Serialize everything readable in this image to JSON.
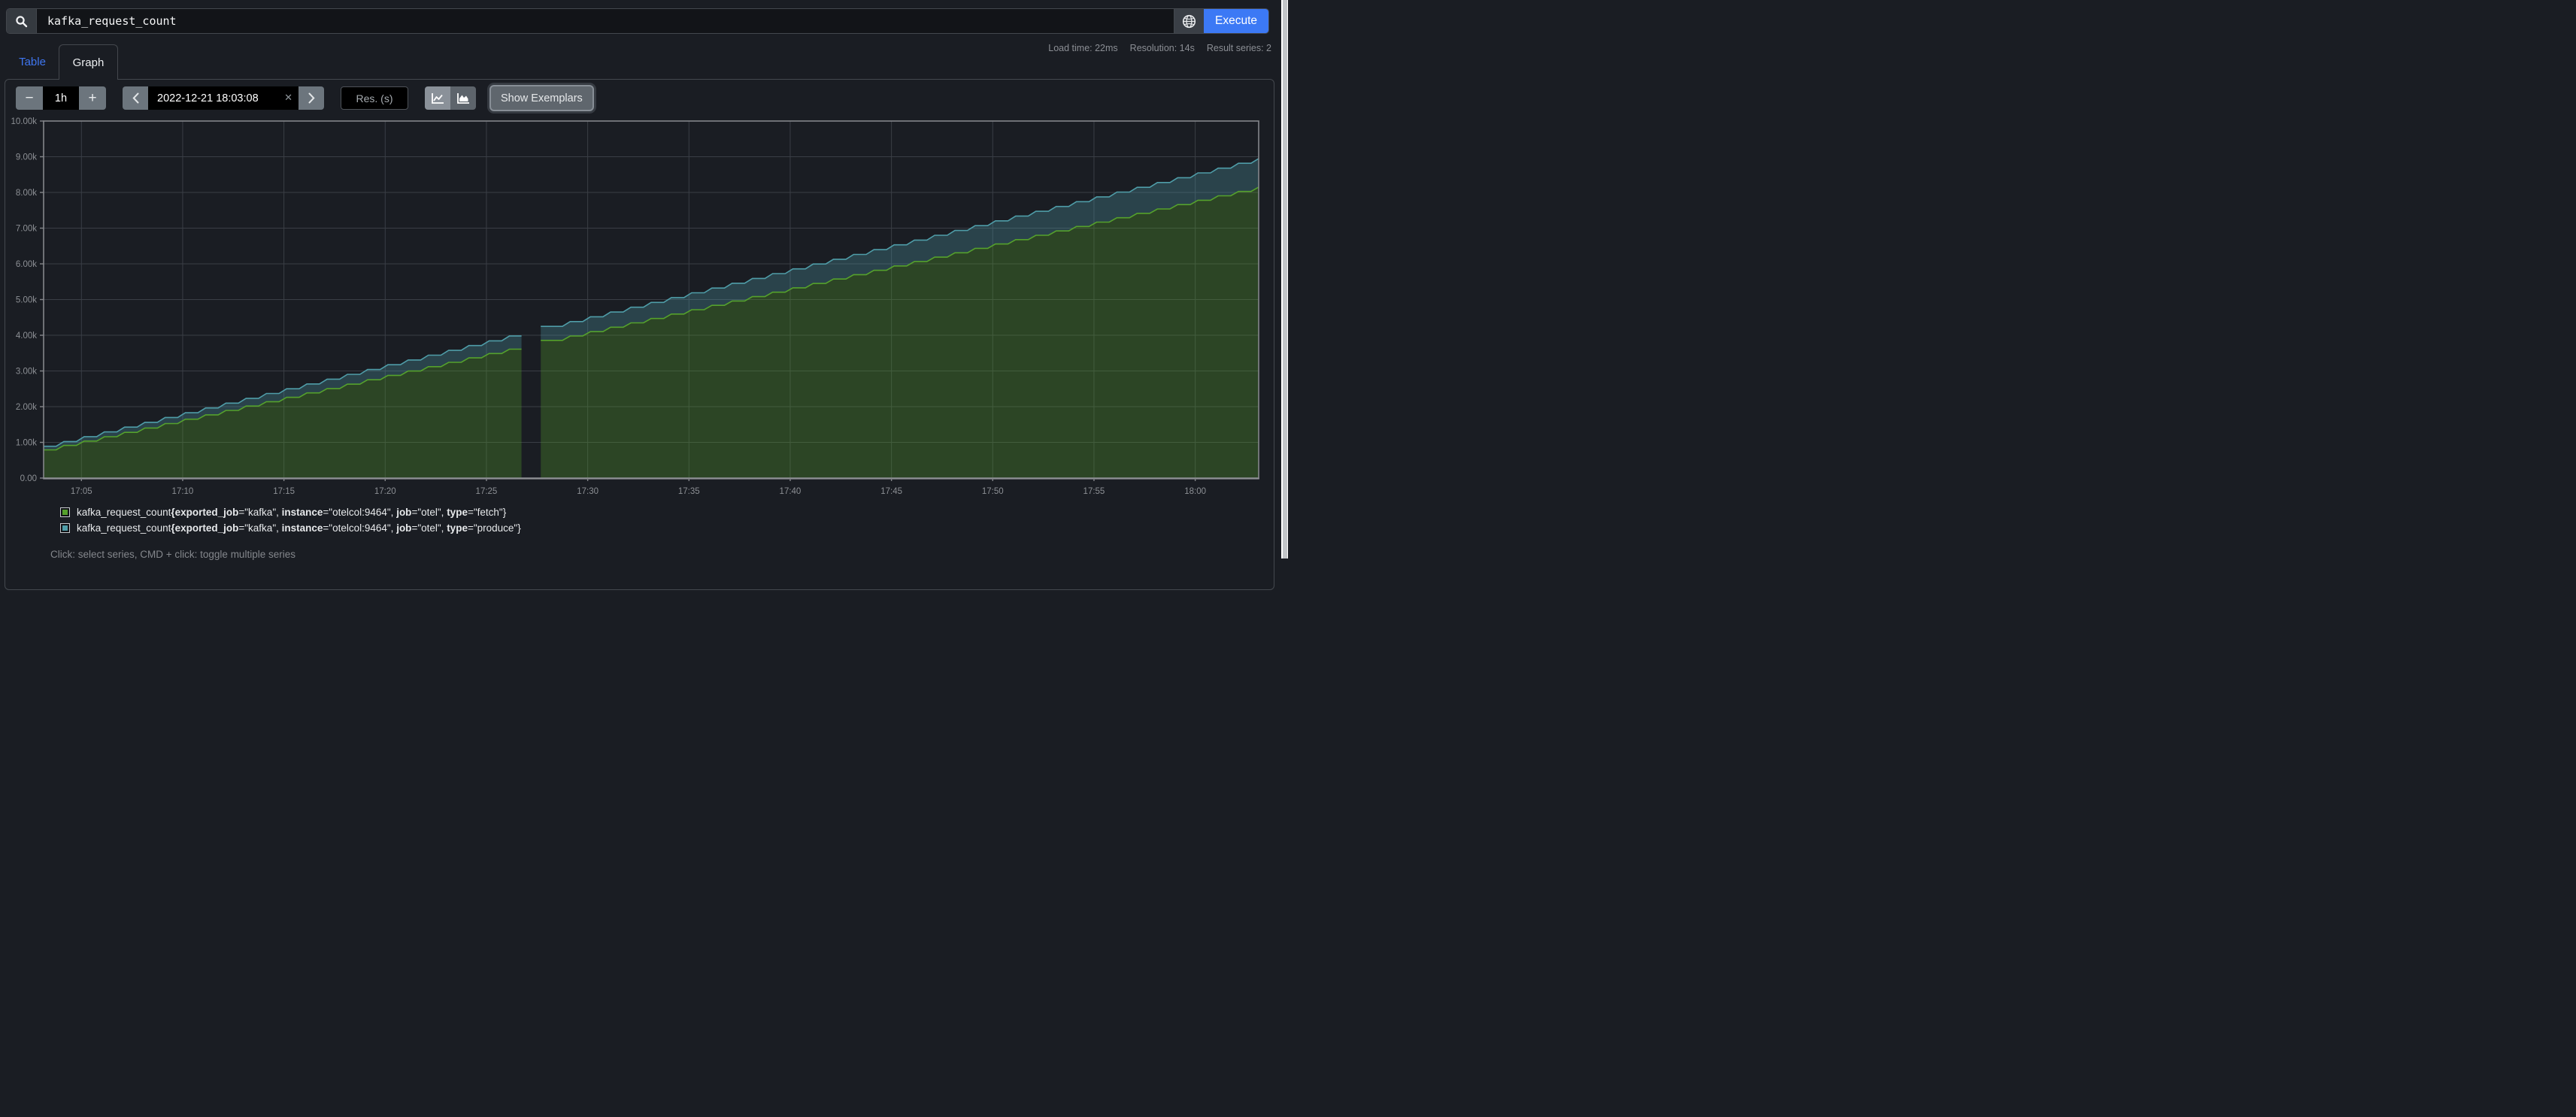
{
  "query_bar": {
    "query": "kafka_request_count",
    "execute_label": "Execute"
  },
  "stats": {
    "load_time": "Load time: 22ms",
    "resolution": "Resolution: 14s",
    "result_series": "Result series: 2"
  },
  "tabs": [
    {
      "label": "Table"
    },
    {
      "label": "Graph"
    }
  ],
  "toolbar": {
    "minus": "−",
    "plus": "+",
    "duration": "1h",
    "datetime": "2022-12-21 18:03:08",
    "clear": "✕",
    "res_placeholder": "Res. (s)",
    "show_exemplars": "Show Exemplars"
  },
  "legend": {
    "series": [
      {
        "color": "#55a12c",
        "metric": "kafka_request_count",
        "labels": [
          [
            "exported_job",
            "kafka"
          ],
          [
            "instance",
            "otelcol:9464"
          ],
          [
            "job",
            "otel"
          ],
          [
            "type",
            "fetch"
          ]
        ]
      },
      {
        "color": "#4f9da8",
        "metric": "kafka_request_count",
        "labels": [
          [
            "exported_job",
            "kafka"
          ],
          [
            "instance",
            "otelcol:9464"
          ],
          [
            "job",
            "otel"
          ],
          [
            "type",
            "produce"
          ]
        ]
      }
    ]
  },
  "hint": "Click: select series, CMD + click: toggle multiple series",
  "colors": {
    "grid": "#3a3e45",
    "border": "#84868a",
    "axis_text": "#8c8f94",
    "fill_opacity": 0.3,
    "background": "#1a1d23"
  },
  "chart_data": {
    "type": "line",
    "stacked": false,
    "title": "kafka_request_count",
    "x_start": "17:03:08",
    "x_end": "18:03:08",
    "x_step_minutes": 1,
    "gap_minute": 24,
    "ylim": [
      0,
      10000
    ],
    "y_ticks": [
      {
        "v": 0,
        "label": "0.00"
      },
      {
        "v": 1000,
        "label": "1.00k"
      },
      {
        "v": 2000,
        "label": "2.00k"
      },
      {
        "v": 3000,
        "label": "3.00k"
      },
      {
        "v": 4000,
        "label": "4.00k"
      },
      {
        "v": 5000,
        "label": "5.00k"
      },
      {
        "v": 6000,
        "label": "6.00k"
      },
      {
        "v": 7000,
        "label": "7.00k"
      },
      {
        "v": 8000,
        "label": "8.00k"
      },
      {
        "v": 9000,
        "label": "9.00k"
      },
      {
        "v": 10000,
        "label": "10.00k"
      }
    ],
    "x_ticks": [
      {
        "t": 1.867,
        "label": "17:05"
      },
      {
        "t": 6.867,
        "label": "17:10"
      },
      {
        "t": 11.867,
        "label": "17:15"
      },
      {
        "t": 16.867,
        "label": "17:20"
      },
      {
        "t": 21.867,
        "label": "17:25"
      },
      {
        "t": 26.867,
        "label": "17:30"
      },
      {
        "t": 31.867,
        "label": "17:35"
      },
      {
        "t": 36.867,
        "label": "17:40"
      },
      {
        "t": 41.867,
        "label": "17:45"
      },
      {
        "t": 46.867,
        "label": "17:50"
      },
      {
        "t": 51.867,
        "label": "17:55"
      },
      {
        "t": 56.867,
        "label": "18:00"
      }
    ],
    "series": [
      {
        "name": "kafka_request_count{exported_job=\"kafka\", instance=\"otelcol:9464\", job=\"otel\", type=\"produce\"}",
        "color": "#4f9da8",
        "values": [
          890,
          1024,
          1159,
          1293,
          1427,
          1562,
          1696,
          1830,
          1965,
          2099,
          2233,
          2368,
          2502,
          2636,
          2771,
          2905,
          3039,
          3174,
          3308,
          3442,
          3577,
          3711,
          3845,
          3980,
          null,
          4248,
          4383,
          4517,
          4651,
          4786,
          4920,
          5054,
          5189,
          5323,
          5457,
          5592,
          5726,
          5860,
          5995,
          6129,
          6263,
          6398,
          6532,
          6666,
          6801,
          6935,
          7069,
          7204,
          7338,
          7472,
          7607,
          7741,
          7875,
          8010,
          8144,
          8278,
          8413,
          8547,
          8681,
          8816,
          8950
        ]
      },
      {
        "name": "kafka_request_count{exported_job=\"kafka\", instance=\"otelcol:9464\", job=\"otel\", type=\"fetch\"}",
        "color": "#55a12c",
        "values": [
          790,
          913,
          1035,
          1158,
          1281,
          1403,
          1526,
          1649,
          1771,
          1894,
          2017,
          2139,
          2262,
          2385,
          2507,
          2630,
          2753,
          2875,
          2998,
          3121,
          3243,
          3366,
          3489,
          3611,
          null,
          3857,
          3979,
          4102,
          4225,
          4347,
          4470,
          4593,
          4715,
          4838,
          4961,
          5083,
          5206,
          5329,
          5451,
          5574,
          5697,
          5819,
          5942,
          6065,
          6187,
          6310,
          6433,
          6555,
          6678,
          6801,
          6923,
          7046,
          7169,
          7291,
          7414,
          7537,
          7659,
          7782,
          7905,
          8027,
          8150
        ]
      }
    ]
  }
}
